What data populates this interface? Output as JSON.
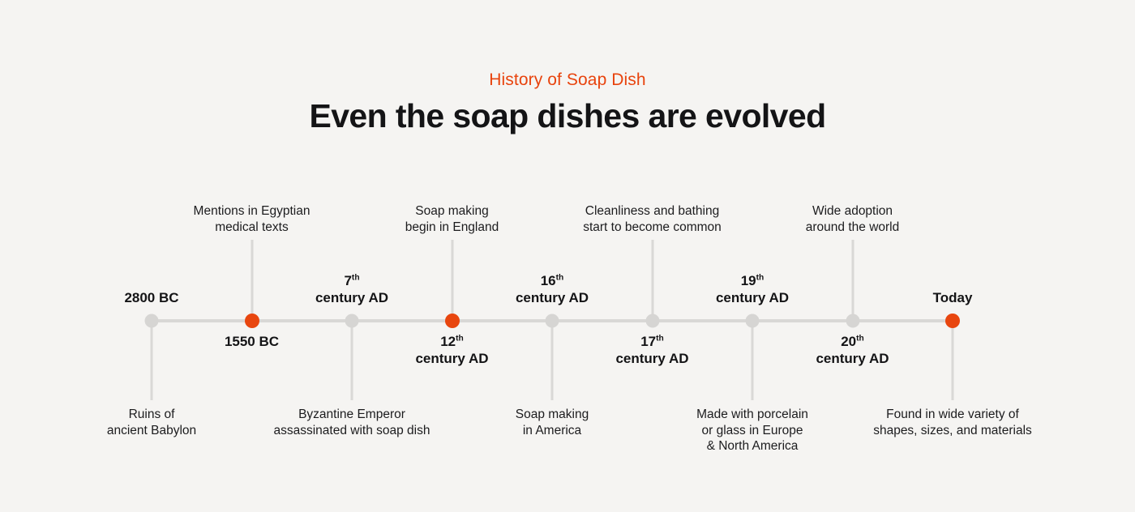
{
  "header": {
    "eyebrow": "History of Soap Dish",
    "title": "Even the soap dishes are evolved"
  },
  "colors": {
    "background": "#F5F4F2",
    "accent_orange": "#E8460F",
    "line_gray": "#D9D8D6",
    "text_dark": "#141416"
  },
  "timeline": {
    "items": [
      {
        "date": {
          "text": "2800 BC",
          "sup": "",
          "line2": ""
        },
        "description": [
          "Ruins of",
          "ancient Babylon"
        ],
        "description_side": "below",
        "dot": "gray"
      },
      {
        "date": {
          "text": "1550 BC",
          "sup": "",
          "line2": ""
        },
        "description": [
          "Mentions in Egyptian",
          "medical texts"
        ],
        "description_side": "above",
        "dot": "orange"
      },
      {
        "date": {
          "text": "7",
          "sup": "th",
          "line2": "century AD"
        },
        "description": [
          "Byzantine Emperor",
          "assassinated with soap dish"
        ],
        "description_side": "below",
        "dot": "gray"
      },
      {
        "date": {
          "text": "12",
          "sup": "th",
          "line2": "century AD"
        },
        "description": [
          "Soap making",
          "begin in England"
        ],
        "description_side": "above",
        "dot": "orange"
      },
      {
        "date": {
          "text": "16",
          "sup": "th",
          "line2": "century AD"
        },
        "description": [
          "Soap making",
          "in America"
        ],
        "description_side": "below",
        "dot": "gray"
      },
      {
        "date": {
          "text": "17",
          "sup": "th",
          "line2": "century AD"
        },
        "description": [
          "Cleanliness and bathing",
          "start to become common"
        ],
        "description_side": "above",
        "dot": "gray"
      },
      {
        "date": {
          "text": "19",
          "sup": "th",
          "line2": "century AD"
        },
        "description": [
          "Made with porcelain",
          "or glass in Europe",
          "& North America"
        ],
        "description_side": "below",
        "dot": "gray"
      },
      {
        "date": {
          "text": "20",
          "sup": "th",
          "line2": "century AD"
        },
        "description": [
          "Wide adoption",
          "around the world"
        ],
        "description_side": "above",
        "dot": "gray"
      },
      {
        "date": {
          "text": "Today",
          "sup": "",
          "line2": ""
        },
        "description": [
          "Found in wide variety of",
          "shapes, sizes, and materials"
        ],
        "description_side": "below",
        "dot": "orange"
      }
    ]
  }
}
